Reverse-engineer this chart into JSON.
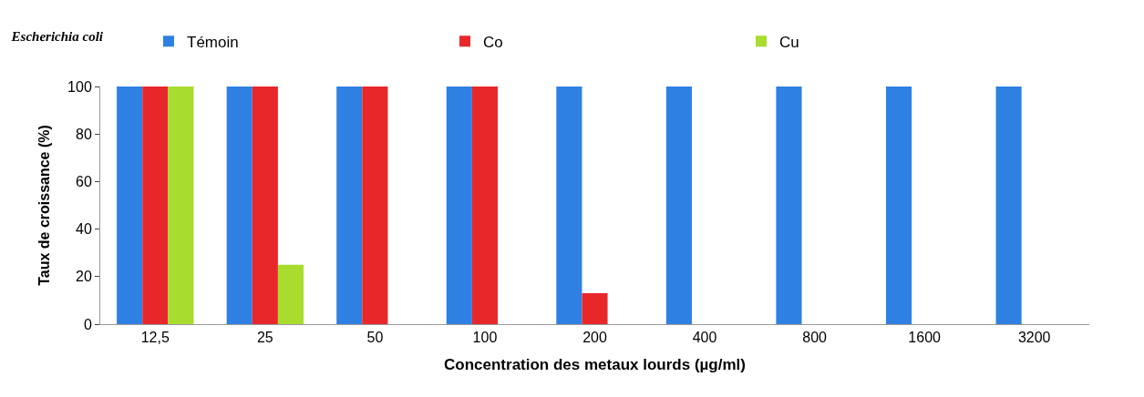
{
  "chart_data": {
    "type": "bar",
    "title": "Escherichia coli",
    "xlabel": "Concentration des metaux lourds (µg/ml)",
    "ylabel": "Taux de croissance (%)",
    "categories": [
      "12,5",
      "25",
      "50",
      "100",
      "200",
      "400",
      "800",
      "1600",
      "3200"
    ],
    "series": [
      {
        "name": "Témoin",
        "color": "#2f80e3",
        "values": [
          100,
          100,
          100,
          100,
          100,
          100,
          100,
          100,
          100
        ]
      },
      {
        "name": "Co",
        "color": "#e8272b",
        "values": [
          100,
          100,
          100,
          100,
          13,
          0,
          0,
          0,
          0
        ]
      },
      {
        "name": "Cu",
        "color": "#a8dc2e",
        "values": [
          100,
          25,
          0,
          0,
          0,
          0,
          0,
          0,
          0
        ]
      }
    ],
    "ylim": [
      0,
      100
    ],
    "yticks": [
      0,
      20,
      40,
      60,
      80,
      100
    ],
    "legend": "top"
  }
}
